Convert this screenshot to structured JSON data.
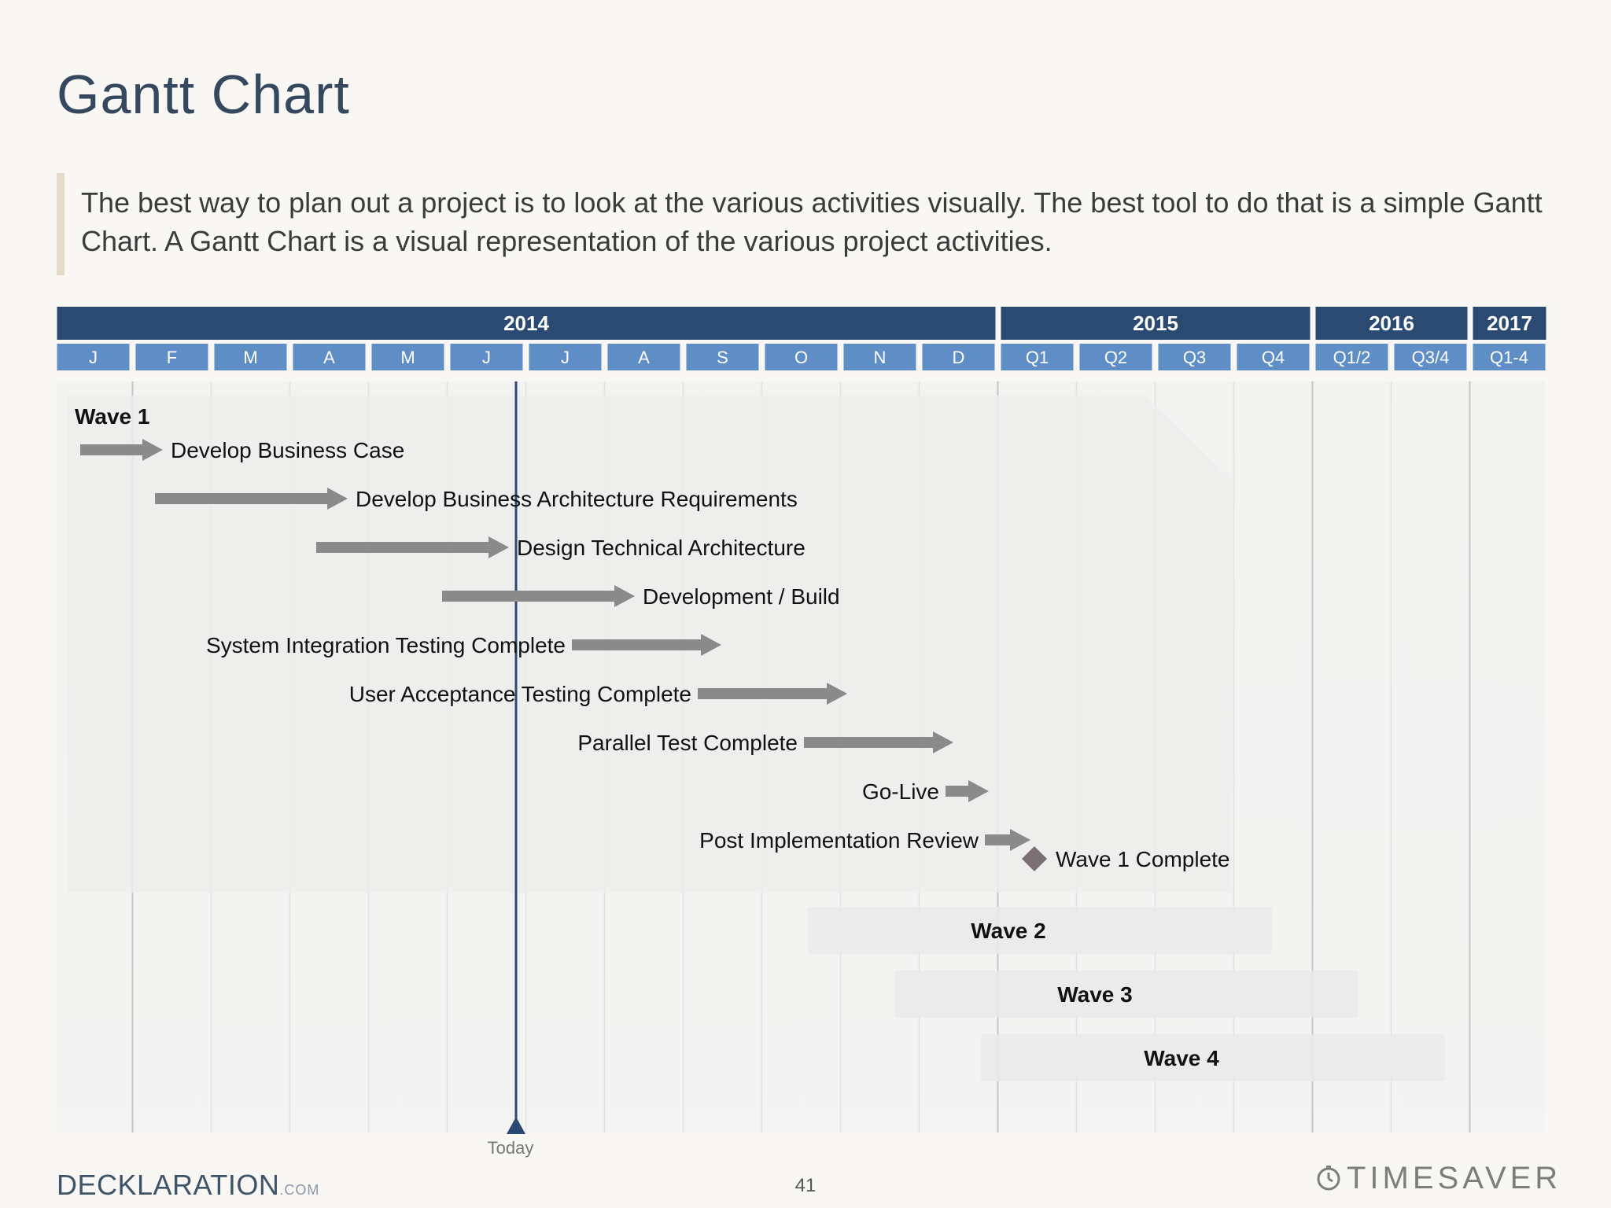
{
  "slide": {
    "title": "Gantt Chart",
    "intro": "The best way to plan out a project is to look at the various activities visually. The best tool to do that is a simple Gantt Chart. A Gantt Chart is a visual representation of the various project activities.",
    "page_number": "41"
  },
  "footer": {
    "brand": "DECKLARATION",
    "brand_suffix": ".COM",
    "logo": "TIMESAVER",
    "logo_icon": "clock-icon"
  },
  "colors": {
    "header": "#2b4a71",
    "period": "#5f8ec7",
    "arrow": "#8a8a8a",
    "milestone": "#7a6f73",
    "today_line": "#2b4a71",
    "wave_panel": "#ececec"
  },
  "chart_data": {
    "type": "gantt",
    "title": "",
    "years": [
      {
        "label": "2014",
        "periods": 12
      },
      {
        "label": "2015",
        "periods": 4
      },
      {
        "label": "2016",
        "periods": 2
      },
      {
        "label": "2017",
        "periods": 1
      }
    ],
    "periods": [
      "J",
      "F",
      "M",
      "A",
      "M",
      "J",
      "J",
      "A",
      "S",
      "O",
      "N",
      "D",
      "Q1",
      "Q2",
      "Q3",
      "Q4",
      "Q1/2",
      "Q3/4",
      "Q1-4"
    ],
    "today": {
      "label": "Today",
      "period_position": 5.5
    },
    "wave1": {
      "label": "Wave 1",
      "tasks": [
        {
          "name": "Develop Business Case",
          "start": 0.3,
          "end": 1.35,
          "label_side": "right"
        },
        {
          "name": "Develop Business Architecture Requirements",
          "start": 1.25,
          "end": 3.7,
          "label_side": "right"
        },
        {
          "name": "Design Technical Architecture",
          "start": 3.3,
          "end": 5.75,
          "label_side": "right"
        },
        {
          "name": "Development / Build",
          "start": 4.9,
          "end": 7.35,
          "label_side": "right"
        },
        {
          "name": "System Integration Testing Complete",
          "start": 6.55,
          "end": 8.45,
          "label_side": "left"
        },
        {
          "name": "User Acceptance Testing Complete",
          "start": 8.15,
          "end": 10.05,
          "label_side": "left"
        },
        {
          "name": "Parallel Test Complete",
          "start": 9.5,
          "end": 11.4,
          "label_side": "left"
        },
        {
          "name": "Go-Live",
          "start": 11.3,
          "end": 11.85,
          "label_side": "left"
        },
        {
          "name": "Post Implementation Review",
          "start": 11.8,
          "end": 12.38,
          "label_side": "left"
        }
      ],
      "milestone": {
        "name": "Wave 1 Complete",
        "at": 12.35
      }
    },
    "waves": [
      {
        "name": "Wave 2",
        "start": 9.55,
        "end": 15.45
      },
      {
        "name": "Wave 3",
        "start": 10.65,
        "end": 16.55
      },
      {
        "name": "Wave 4",
        "start": 11.75,
        "end": 17.65
      }
    ]
  }
}
